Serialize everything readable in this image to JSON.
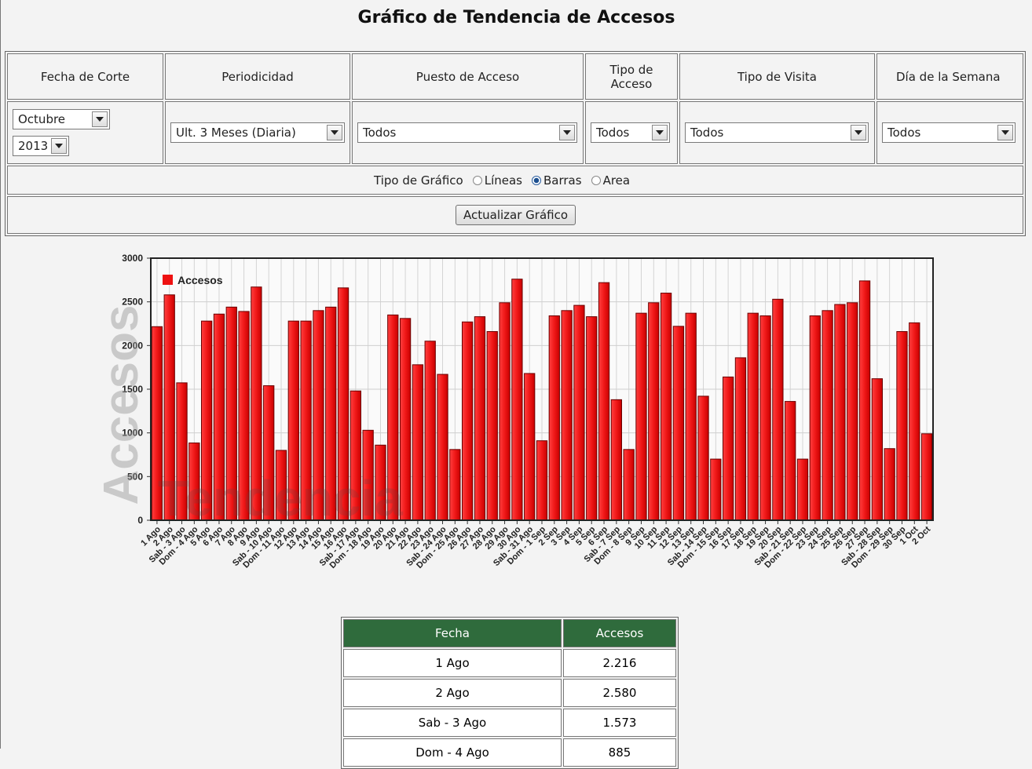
{
  "title": "Gráfico de Tendencia de Accesos",
  "filters": {
    "headers": [
      "Fecha de Corte",
      "Periodicidad",
      "Puesto de Acceso",
      "Tipo de Acceso",
      "Tipo de Visita",
      "Día de la Semana"
    ],
    "fecha_corte": {
      "month": "Octubre",
      "year": "2013"
    },
    "selects": [
      "Ult. 3 Meses (Diaria)",
      "Todos",
      "Todos",
      "Todos",
      "Todos"
    ]
  },
  "chart_type": {
    "label": "Tipo de Gráfico",
    "options": [
      "Líneas",
      "Barras",
      "Area"
    ],
    "selected": 1
  },
  "button": "Actualizar Gráfico",
  "chart_data": {
    "type": "bar",
    "y_label": "Accesos",
    "x_label": "Tendencia",
    "categories": [
      "1 Ago",
      "2 Ago",
      "Sab - 3 Ago",
      "Dom - 4 Ago",
      "5 Ago",
      "6 Ago",
      "7 Ago",
      "8 Ago",
      "9 Ago",
      "Sab - 10 Ago",
      "Dom - 11 Ago",
      "12 Ago",
      "13 Ago",
      "14 Ago",
      "15 Ago",
      "16 Ago",
      "Sab - 17 Ago",
      "Dom - 18 Ago",
      "19 Ago",
      "20 Ago",
      "21 Ago",
      "22 Ago",
      "23 Ago",
      "Sab - 24 Ago",
      "Dom - 25 Ago",
      "26 Ago",
      "27 Ago",
      "28 Ago",
      "29 Ago",
      "30 Ago",
      "Sab - 31 Ago",
      "Dom - 1 Sep",
      "2 Sep",
      "3 Sep",
      "4 Sep",
      "5 Sep",
      "6 Sep",
      "Sab - 7 Sep",
      "Dom - 8 Sep",
      "9 Sep",
      "10 Sep",
      "11 Sep",
      "12 Sep",
      "13 Sep",
      "Sab - 14 Sep",
      "Dom - 15 Sep",
      "16 Sep",
      "17 Sep",
      "18 Sep",
      "19 Sep",
      "20 Sep",
      "Sab - 21 Sep",
      "Dom - 22 Sep",
      "23 Sep",
      "24 Sep",
      "25 Sep",
      "26 Sep",
      "27 Sep",
      "Sab - 28 Sep",
      "Dom - 29 Sep",
      "30 Sep",
      "1 Oct",
      "2 Oct"
    ],
    "series": [
      {
        "name": "Accesos",
        "color": "#ee1111",
        "values": [
          2216,
          2580,
          1573,
          885,
          2280,
          2360,
          2440,
          2390,
          2670,
          1540,
          800,
          2280,
          2280,
          2400,
          2440,
          2660,
          1480,
          1030,
          860,
          2350,
          2310,
          1780,
          2050,
          1670,
          810,
          2270,
          2330,
          2160,
          2490,
          2760,
          1680,
          910,
          2340,
          2400,
          2460,
          2330,
          2720,
          1380,
          810,
          2370,
          2490,
          2600,
          2220,
          2370,
          1420,
          700,
          1640,
          1860,
          2370,
          2340,
          2530,
          1360,
          700,
          2340,
          2400,
          2470,
          2490,
          2740,
          1620,
          820,
          2160,
          2260,
          990
        ]
      }
    ],
    "ylim": [
      0,
      3000
    ],
    "yticks": [
      0,
      500,
      1000,
      1500,
      2000,
      2500,
      3000
    ],
    "grid": true,
    "legend": "upper left"
  },
  "table": {
    "columns": [
      "Fecha",
      "Accesos"
    ],
    "rows": [
      [
        "1 Ago",
        "2.216"
      ],
      [
        "2 Ago",
        "2.580"
      ],
      [
        "Sab - 3 Ago",
        "1.573"
      ],
      [
        "Dom - 4 Ago",
        "885"
      ]
    ]
  }
}
